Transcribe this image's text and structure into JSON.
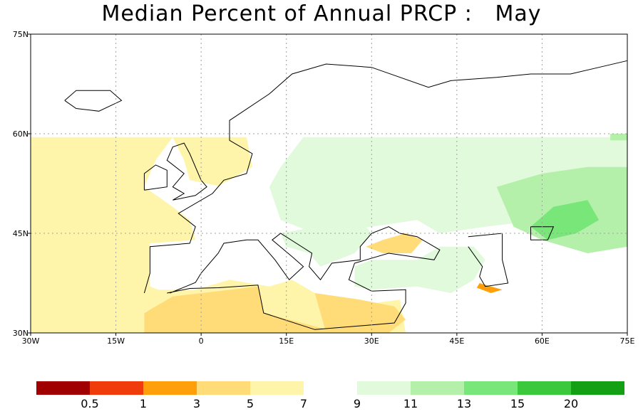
{
  "title": "Median Percent of Annual PRCP :   May",
  "map": {
    "lon_range": [
      -30,
      75
    ],
    "lat_range": [
      30,
      75
    ],
    "lon_ticks": [
      {
        "lon": -30,
        "label": "30W"
      },
      {
        "lon": -15,
        "label": "15W"
      },
      {
        "lon": 0,
        "label": "0"
      },
      {
        "lon": 15,
        "label": "15E"
      },
      {
        "lon": 30,
        "label": "30E"
      },
      {
        "lon": 45,
        "label": "45E"
      },
      {
        "lon": 60,
        "label": "60E"
      },
      {
        "lon": 75,
        "label": "75E"
      }
    ],
    "lat_ticks": [
      {
        "lat": 30,
        "label": "30N"
      },
      {
        "lat": 45,
        "label": "45N"
      },
      {
        "lat": 60,
        "label": "60N"
      },
      {
        "lat": 75,
        "label": "75N"
      }
    ],
    "data_coverage_north_limit_lat": 60,
    "regions": [
      {
        "name": "north-atlantic",
        "bin": "5-7",
        "poly": [
          [
            -30,
            30
          ],
          [
            -30,
            59.5
          ],
          [
            -5,
            59.5
          ],
          [
            -8,
            56
          ],
          [
            -10,
            52
          ],
          [
            -5,
            49
          ],
          [
            -2,
            47
          ],
          [
            -1,
            44
          ],
          [
            -9,
            43.5
          ],
          [
            -9,
            37
          ],
          [
            -6,
            36
          ],
          [
            -10,
            33
          ],
          [
            -10,
            30
          ]
        ]
      },
      {
        "name": "iberia-mediterranean",
        "bin": "5-7",
        "poly": [
          [
            -9,
            36.5
          ],
          [
            -1,
            36.5
          ],
          [
            5,
            38
          ],
          [
            12,
            37
          ],
          [
            16,
            38
          ],
          [
            20,
            36
          ],
          [
            26,
            34
          ],
          [
            35,
            35
          ],
          [
            36,
            30
          ],
          [
            -10,
            30
          ]
        ]
      },
      {
        "name": "north-africa",
        "bin": "3-5",
        "poly": [
          [
            -10,
            30
          ],
          [
            -10,
            33
          ],
          [
            -5,
            35.5
          ],
          [
            10,
            37
          ],
          [
            11,
            33
          ],
          [
            20,
            31
          ],
          [
            25,
            30
          ]
        ]
      },
      {
        "name": "eastern-mediterranean",
        "bin": "3-5",
        "poly": [
          [
            20,
            36
          ],
          [
            28,
            35
          ],
          [
            34,
            34
          ],
          [
            36,
            32
          ],
          [
            33,
            30
          ],
          [
            22,
            30
          ]
        ]
      },
      {
        "name": "north-sea",
        "bin": "5-7",
        "poly": [
          [
            -5,
            59.5
          ],
          [
            8,
            59.5
          ],
          [
            9,
            55
          ],
          [
            4,
            52
          ],
          [
            -2,
            53
          ],
          [
            -3,
            56
          ]
        ]
      },
      {
        "name": "central-europe",
        "bin": "7-9",
        "poly": [
          [
            -2,
            47
          ],
          [
            -2,
            50
          ],
          [
            5,
            53
          ],
          [
            9,
            55
          ],
          [
            10,
            59
          ],
          [
            18,
            59.5
          ],
          [
            28,
            59.5
          ],
          [
            40,
            59.5
          ],
          [
            40,
            50
          ],
          [
            30,
            46
          ],
          [
            20,
            44
          ],
          [
            14,
            45
          ],
          [
            8,
            44
          ],
          [
            3,
            43
          ],
          [
            -1,
            44
          ]
        ]
      },
      {
        "name": "eastern-europe",
        "bin": "9-11",
        "poly": [
          [
            18,
            59.5
          ],
          [
            75,
            59.5
          ],
          [
            75,
            48
          ],
          [
            60,
            47
          ],
          [
            50,
            46
          ],
          [
            42,
            45
          ],
          [
            38,
            47
          ],
          [
            30,
            46
          ],
          [
            20,
            45
          ],
          [
            14,
            47
          ],
          [
            12,
            52
          ],
          [
            14,
            55
          ]
        ]
      },
      {
        "name": "balkans-carpathians",
        "bin": "9-11",
        "poly": [
          [
            14,
            45
          ],
          [
            20,
            46
          ],
          [
            28,
            47
          ],
          [
            30,
            45
          ],
          [
            27,
            42
          ],
          [
            21,
            40
          ],
          [
            19,
            42
          ],
          [
            15,
            43
          ]
        ]
      },
      {
        "name": "anatolia-caucasus",
        "bin": "9-11",
        "poly": [
          [
            27,
            40
          ],
          [
            30,
            41
          ],
          [
            38,
            41
          ],
          [
            42,
            43
          ],
          [
            48,
            43
          ],
          [
            50,
            41
          ],
          [
            48,
            38
          ],
          [
            44,
            36
          ],
          [
            38,
            37
          ],
          [
            30,
            36.5
          ],
          [
            27,
            37
          ]
        ]
      },
      {
        "name": "kazakh-steppe",
        "bin": "11-13",
        "poly": [
          [
            52,
            52
          ],
          [
            60,
            54
          ],
          [
            68,
            55
          ],
          [
            75,
            55
          ],
          [
            75,
            43
          ],
          [
            68,
            42
          ],
          [
            60,
            44
          ],
          [
            55,
            46
          ]
        ]
      },
      {
        "name": "ural-steppe",
        "bin": "13-15",
        "poly": [
          [
            58,
            46
          ],
          [
            62,
            49
          ],
          [
            68,
            50
          ],
          [
            70,
            47
          ],
          [
            66,
            45
          ],
          [
            61,
            44
          ]
        ]
      },
      {
        "name": "caspian-south-shore",
        "bin": "1-3",
        "poly": [
          [
            49,
            37.5
          ],
          [
            51,
            37
          ],
          [
            53,
            36.5
          ],
          [
            51,
            36
          ],
          [
            48.5,
            36.8
          ]
        ]
      },
      {
        "name": "black-sea-east",
        "bin": "3-5",
        "poly": [
          [
            29,
            43
          ],
          [
            32,
            44
          ],
          [
            36,
            45
          ],
          [
            39,
            44
          ],
          [
            37,
            42
          ],
          [
            32,
            42
          ]
        ]
      },
      {
        "name": "scandinavia-edge",
        "bin": "11-13",
        "poly": [
          [
            72,
            60
          ],
          [
            75,
            60
          ],
          [
            75,
            59
          ],
          [
            72,
            59
          ]
        ]
      },
      {
        "name": "central-asia-south",
        "bin": "7-9",
        "poly": [
          [
            52,
            36
          ],
          [
            62,
            37
          ],
          [
            70,
            38
          ],
          [
            75,
            37
          ],
          [
            75,
            30
          ],
          [
            55,
            30
          ],
          [
            52,
            32
          ]
        ]
      }
    ]
  },
  "legend": {
    "bins": [
      {
        "color": "#a00000"
      },
      {
        "color": "#f03c0a"
      },
      {
        "color": "#ffa00a"
      },
      {
        "color": "#ffdc78"
      },
      {
        "color": "#fff5aa"
      },
      {
        "color": "#ffffff"
      },
      {
        "color": "#e1fadc"
      },
      {
        "color": "#b4f0aa"
      },
      {
        "color": "#78e678"
      },
      {
        "color": "#3cc83c"
      },
      {
        "color": "#14a014"
      }
    ],
    "labels": [
      "0.5",
      "1",
      "3",
      "5",
      "7",
      "9",
      "11",
      "13",
      "15",
      "20"
    ]
  },
  "colors": {
    "land_outline": "#000000",
    "border": "#a0a0a0",
    "grid": "#a0a0a0"
  }
}
